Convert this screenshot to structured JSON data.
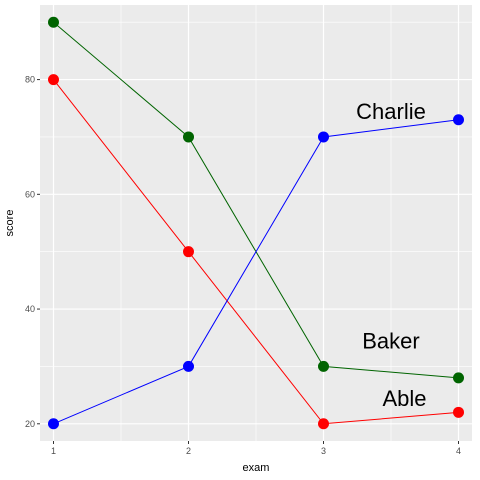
{
  "chart_data": {
    "type": "line",
    "xlabel": "exam",
    "ylabel": "score",
    "x": [
      1,
      2,
      3,
      4
    ],
    "xlim": [
      0.9,
      4.1
    ],
    "ylim": [
      17,
      93
    ],
    "x_ticks": [
      1,
      2,
      3,
      4
    ],
    "y_ticks": [
      20,
      40,
      60,
      80
    ],
    "grid": true,
    "series": [
      {
        "name": "Able",
        "color": "#ff0000",
        "values": [
          80,
          50,
          20,
          22
        ],
        "label_at": [
          3.6,
          24.5
        ]
      },
      {
        "name": "Baker",
        "color": "#006400",
        "values": [
          90,
          70,
          30,
          28
        ],
        "label_at": [
          3.5,
          34.5
        ]
      },
      {
        "name": "Charlie",
        "color": "#0000ff",
        "values": [
          20,
          30,
          70,
          73
        ],
        "label_at": [
          3.5,
          74.5
        ]
      }
    ]
  }
}
